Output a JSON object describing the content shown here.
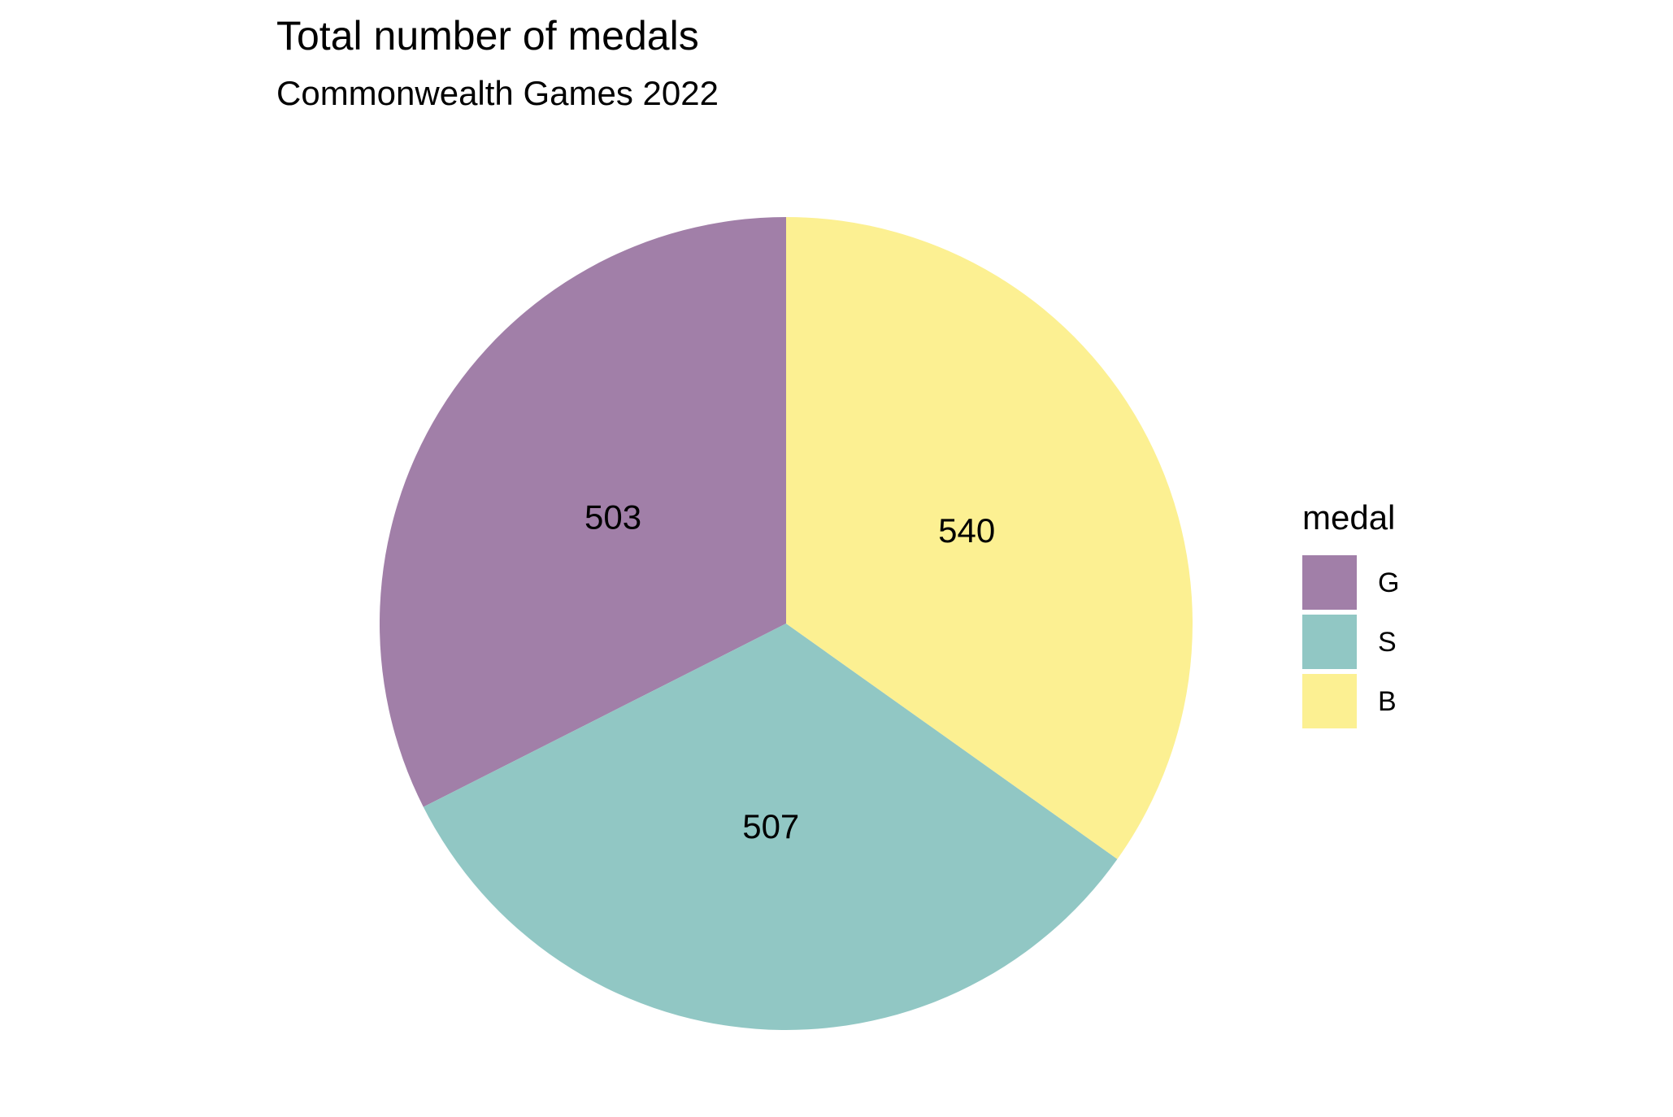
{
  "chart_data": {
    "type": "pie",
    "title": "Total number of medals",
    "subtitle": "Commonwealth Games 2022",
    "legend_title": "medal",
    "legend_position": "right",
    "slices": [
      {
        "label": "G",
        "value": 503,
        "color": "#A17FA8"
      },
      {
        "label": "S",
        "value": 507,
        "color": "#91C7C4"
      },
      {
        "label": "B",
        "value": 540,
        "color": "#FCF092"
      }
    ]
  }
}
